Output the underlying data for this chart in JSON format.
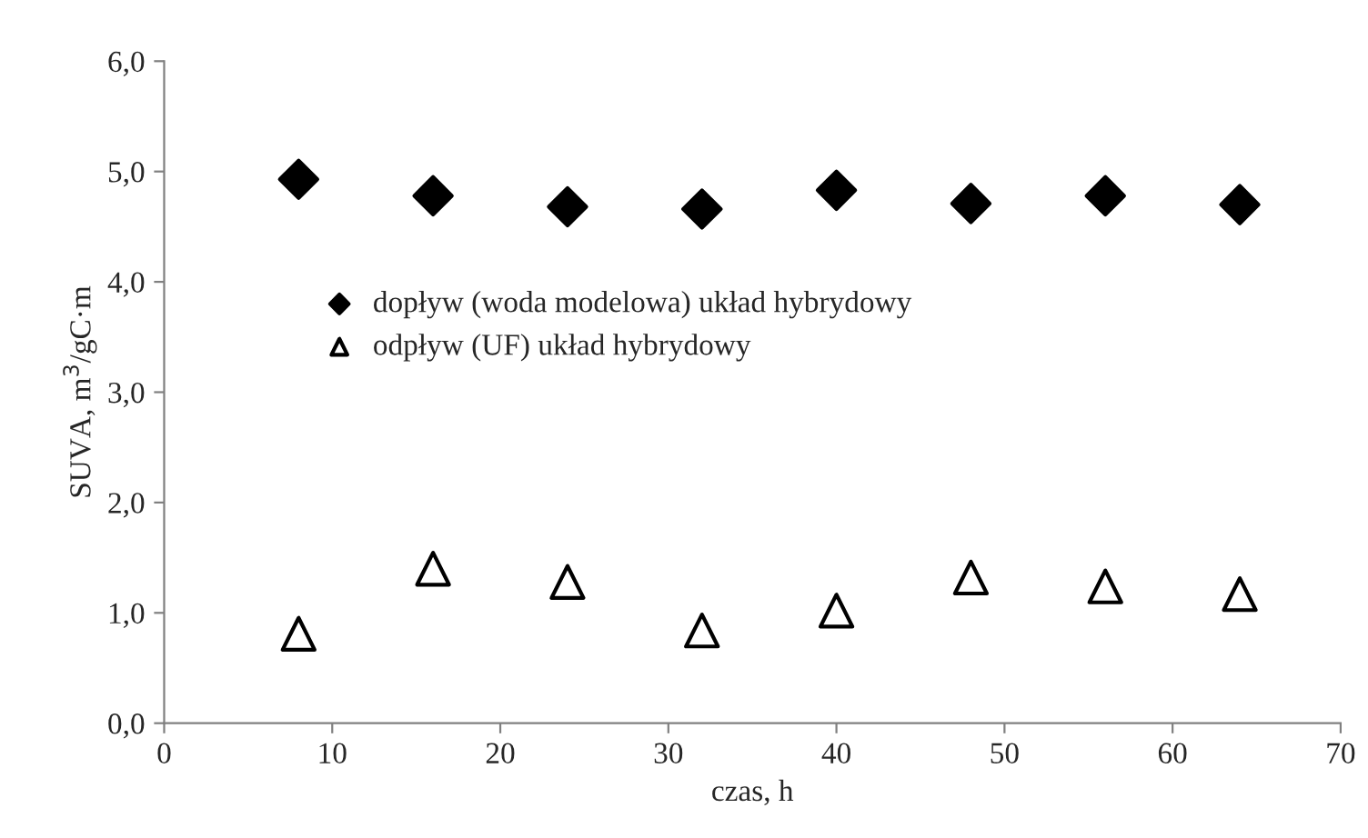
{
  "chart_data": {
    "type": "scatter",
    "xlabel": "czas, h",
    "ylabel": "SUVA, m$^{3}$/gC·m",
    "x": [
      8,
      16,
      24,
      32,
      40,
      48,
      56,
      64
    ],
    "series": [
      {
        "name": "dopływ (woda modelowa) układ hybrydowy",
        "color": "#000000",
        "marker": "diamond",
        "values": [
          4.93,
          4.78,
          4.68,
          4.66,
          4.83,
          4.71,
          4.78,
          4.7
        ]
      },
      {
        "name": "odpływ (UF) układ hybrydowy",
        "color": "#000000",
        "marker": "triangle",
        "values": [
          0.81,
          1.4,
          1.28,
          0.84,
          1.02,
          1.32,
          1.24,
          1.17
        ]
      }
    ],
    "xlim": [
      0,
      70
    ],
    "xticks": [
      0,
      10,
      20,
      30,
      40,
      50,
      60,
      70
    ],
    "ylim": [
      0,
      6
    ],
    "yticks": [
      {
        "value": 0,
        "label": "0,0"
      },
      {
        "value": 1,
        "label": "1,0"
      },
      {
        "value": 2,
        "label": "2,0"
      },
      {
        "value": 3,
        "label": "3,0"
      },
      {
        "value": 4,
        "label": "4,0"
      },
      {
        "value": 5,
        "label": "5,0"
      },
      {
        "value": 6,
        "label": "6,0"
      }
    ],
    "grid": false,
    "legend": "center left"
  }
}
